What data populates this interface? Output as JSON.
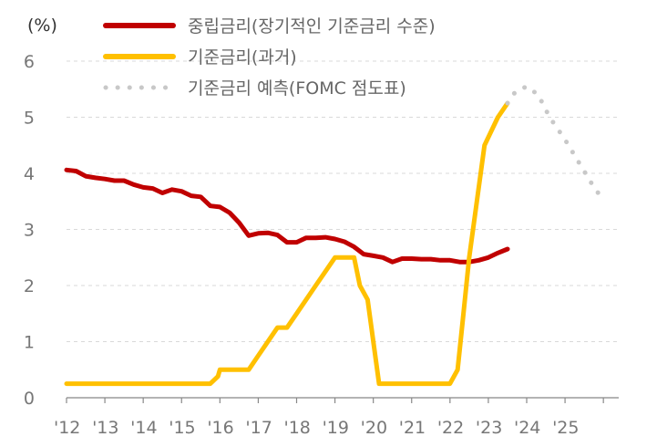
{
  "chart_data": {
    "type": "line",
    "unit_label": "(%)",
    "ylim": [
      0,
      6
    ],
    "yticks": [
      "0",
      "1",
      "2",
      "3",
      "4",
      "5",
      "6"
    ],
    "xlim": [
      2012.0,
      2026.4
    ],
    "xtick_labels": [
      "'12",
      "'13",
      "'14",
      "'15",
      "'16",
      "'17",
      "'18",
      "'19",
      "'20",
      "'21",
      "'22",
      "'23",
      "'24",
      "'25"
    ],
    "grid": "horizontal dashed",
    "legend_position": "top",
    "series": [
      {
        "name": "중립금리(장기적인 기준금리 수준)",
        "color": "#c00000",
        "style": "solid",
        "x": [
          2012.0,
          2012.25,
          2012.5,
          2012.75,
          2013.0,
          2013.25,
          2013.5,
          2013.75,
          2014.0,
          2014.25,
          2014.5,
          2014.75,
          2015.0,
          2015.25,
          2015.5,
          2015.75,
          2016.0,
          2016.25,
          2016.5,
          2016.75,
          2017.0,
          2017.25,
          2017.5,
          2017.75,
          2018.0,
          2018.25,
          2018.5,
          2018.75,
          2019.0,
          2019.25,
          2019.5,
          2019.75,
          2020.0,
          2020.25,
          2020.5,
          2020.75,
          2021.0,
          2021.25,
          2021.5,
          2021.75,
          2022.0,
          2022.25,
          2022.5,
          2022.75,
          2023.0,
          2023.25,
          2023.5
        ],
        "y": [
          4.06,
          4.04,
          3.95,
          3.92,
          3.9,
          3.87,
          3.87,
          3.8,
          3.75,
          3.73,
          3.65,
          3.71,
          3.68,
          3.6,
          3.58,
          3.42,
          3.4,
          3.3,
          3.12,
          2.89,
          2.93,
          2.94,
          2.9,
          2.77,
          2.77,
          2.85,
          2.85,
          2.86,
          2.83,
          2.78,
          2.69,
          2.56,
          2.53,
          2.5,
          2.42,
          2.48,
          2.48,
          2.47,
          2.47,
          2.45,
          2.45,
          2.42,
          2.42,
          2.45,
          2.5,
          2.58,
          2.65
        ]
      },
      {
        "name": "기준금리(과거)",
        "color": "#ffc000",
        "style": "solid",
        "x": [
          2012.0,
          2015.75,
          2015.95,
          2016.0,
          2016.75,
          2017.0,
          2017.5,
          2017.75,
          2018.0,
          2018.5,
          2018.9,
          2019.0,
          2019.5,
          2019.65,
          2019.85,
          2020.15,
          2020.25,
          2022.0,
          2022.2,
          2022.35,
          2022.5,
          2022.7,
          2022.9,
          2023.25,
          2023.5
        ],
        "y": [
          0.25,
          0.25,
          0.38,
          0.5,
          0.5,
          0.75,
          1.25,
          1.25,
          1.5,
          2.0,
          2.4,
          2.5,
          2.5,
          2.0,
          1.75,
          0.25,
          0.25,
          0.25,
          0.5,
          1.5,
          2.5,
          3.5,
          4.5,
          5.0,
          5.25
        ]
      },
      {
        "name": "기준금리 예측(FOMC 점도표)",
        "color": "#c8c8c8",
        "style": "dotted",
        "x": [
          2023.5,
          2023.7,
          2024.0,
          2024.3,
          2024.6,
          2025.0,
          2025.4,
          2025.8,
          2026.0
        ],
        "y": [
          5.25,
          5.45,
          5.55,
          5.4,
          5.0,
          4.6,
          4.15,
          3.7,
          3.55
        ]
      }
    ]
  }
}
